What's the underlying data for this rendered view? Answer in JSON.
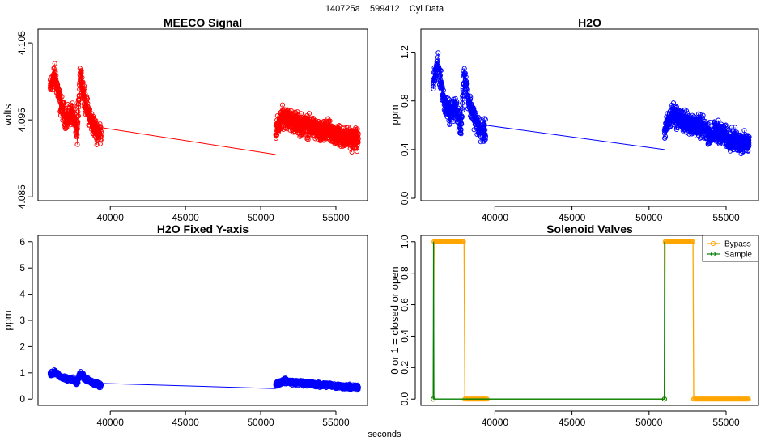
{
  "figure": {
    "suptitle": "140725a    599412    Cyl Data",
    "xlabel": "seconds"
  },
  "chart_data": [
    {
      "id": "meeco",
      "type": "line",
      "title": "MEECO Signal",
      "xlabel": "",
      "ylabel": "volts",
      "color": "#ff0000",
      "marker": "open-circle",
      "xlim": [
        35200,
        57100
      ],
      "ylim": [
        4.0845,
        4.1068
      ],
      "xticks": [
        40000,
        45000,
        50000,
        55000
      ],
      "xtick_labels": [
        "40000",
        "45000",
        "50000",
        "55000"
      ],
      "yticks": [
        4.085,
        4.095,
        4.105
      ],
      "ytick_labels": [
        "4.085",
        "4.095",
        "4.105"
      ],
      "ytick_rotated": true,
      "segments": [
        {
          "x": [
            36000,
            36300,
            36700,
            37100,
            37500,
            37800,
            38000,
            38300,
            38700,
            39100,
            39400
          ],
          "y": [
            4.099,
            4.101,
            4.097,
            4.095,
            4.096,
            4.093,
            4.1015,
            4.0975,
            4.095,
            4.0935,
            4.0935
          ]
        },
        {
          "x": [
            51000,
            51500,
            52000,
            52500,
            53000,
            53500,
            54000,
            54500,
            55000,
            55500,
            56000,
            56500
          ],
          "y": [
            4.0935,
            4.0955,
            4.095,
            4.0945,
            4.0942,
            4.094,
            4.0932,
            4.0935,
            4.093,
            4.0928,
            4.0925,
            4.0925
          ]
        }
      ],
      "connector": {
        "x": [
          39400,
          51000
        ],
        "y": [
          4.094,
          4.0905
        ]
      }
    },
    {
      "id": "h2o",
      "type": "line",
      "title": "H2O",
      "xlabel": "",
      "ylabel": "ppm",
      "color": "#0000ff",
      "marker": "open-circle",
      "xlim": [
        35200,
        57100
      ],
      "ylim": [
        -0.02,
        1.39
      ],
      "xticks": [
        40000,
        45000,
        50000,
        55000
      ],
      "xtick_labels": [
        "40000",
        "45000",
        "50000",
        "55000"
      ],
      "yticks": [
        0.0,
        0.4,
        0.8,
        1.2
      ],
      "ytick_labels": [
        "0.0",
        "0.4",
        "0.8",
        "1.2"
      ],
      "ytick_rotated": true,
      "segments": [
        {
          "x": [
            36000,
            36300,
            36700,
            37100,
            37500,
            37800,
            38000,
            38300,
            38700,
            39100,
            39400
          ],
          "y": [
            0.95,
            1.1,
            0.8,
            0.7,
            0.75,
            0.55,
            1.05,
            0.8,
            0.65,
            0.55,
            0.55
          ]
        },
        {
          "x": [
            51000,
            51500,
            52000,
            52500,
            53000,
            53500,
            54000,
            54500,
            55000,
            55500,
            56000,
            56500
          ],
          "y": [
            0.55,
            0.7,
            0.65,
            0.62,
            0.6,
            0.58,
            0.52,
            0.55,
            0.5,
            0.48,
            0.45,
            0.45
          ]
        }
      ],
      "connector": {
        "x": [
          39400,
          51000
        ],
        "y": [
          0.6,
          0.4
        ]
      }
    },
    {
      "id": "h2o_fixed",
      "type": "line",
      "title": "H2O Fixed Y-axis",
      "xlabel": "",
      "ylabel": "ppm",
      "color": "#0000ff",
      "marker": "open-circle",
      "xlim": [
        35200,
        57100
      ],
      "ylim": [
        -0.24,
        6.24
      ],
      "xticks": [
        40000,
        45000,
        50000,
        55000
      ],
      "xtick_labels": [
        "40000",
        "45000",
        "50000",
        "55000"
      ],
      "yticks": [
        0,
        1,
        2,
        3,
        4,
        5,
        6
      ],
      "ytick_labels": [
        "0",
        "1",
        "2",
        "3",
        "4",
        "5",
        "6"
      ],
      "ytick_rotated": false,
      "segments": [
        {
          "x": [
            36000,
            36300,
            36700,
            37100,
            37500,
            37800,
            38000,
            38300,
            38700,
            39100,
            39400
          ],
          "y": [
            0.95,
            1.05,
            0.85,
            0.75,
            0.75,
            0.6,
            1.0,
            0.8,
            0.65,
            0.55,
            0.55
          ]
        },
        {
          "x": [
            51000,
            51500,
            52000,
            52500,
            53000,
            53500,
            54000,
            54500,
            55000,
            55500,
            56000,
            56500
          ],
          "y": [
            0.55,
            0.7,
            0.65,
            0.62,
            0.6,
            0.58,
            0.52,
            0.55,
            0.5,
            0.48,
            0.45,
            0.45
          ]
        }
      ],
      "connector": {
        "x": [
          39400,
          51000
        ],
        "y": [
          0.6,
          0.4
        ]
      }
    },
    {
      "id": "valves",
      "type": "line",
      "title": "Solenoid Valves",
      "xlabel": "",
      "ylabel": "0 or 1 = closed or open",
      "xlim": [
        35200,
        57100
      ],
      "ylim": [
        -0.04,
        1.04
      ],
      "xticks": [
        40000,
        45000,
        50000,
        55000
      ],
      "xtick_labels": [
        "40000",
        "45000",
        "50000",
        "55000"
      ],
      "yticks": [
        0.0,
        0.2,
        0.4,
        0.6,
        0.8,
        1.0
      ],
      "ytick_labels": [
        "0.0",
        "0.2",
        "0.4",
        "0.6",
        "0.8",
        "1.0"
      ],
      "ytick_rotated": true,
      "legend": {
        "position": "top-right",
        "entries": [
          "Bypass",
          "Sample"
        ]
      },
      "series": [
        {
          "name": "Bypass",
          "color": "#ffa500",
          "steps": [
            [
              36000,
              0
            ],
            [
              36050,
              1
            ],
            [
              38000,
              1
            ],
            [
              38050,
              0
            ],
            [
              51000,
              0
            ],
            [
              51050,
              1
            ],
            [
              52850,
              1
            ],
            [
              52900,
              0
            ],
            [
              56500,
              0
            ]
          ],
          "marker_ranges": [
            [
              36050,
              38000,
              1
            ],
            [
              38050,
              39500,
              0
            ],
            [
              51050,
              52850,
              1
            ],
            [
              52900,
              56500,
              0
            ]
          ],
          "isolated_markers": [
            [
              36000,
              0
            ],
            [
              51000,
              0
            ]
          ]
        },
        {
          "name": "Sample",
          "color": "#008000",
          "steps": [
            [
              36000,
              0
            ],
            [
              36020,
              1
            ],
            [
              36040,
              0
            ],
            [
              50990,
              0
            ],
            [
              51010,
              1
            ],
            [
              51030,
              0
            ]
          ],
          "marker_ranges": [],
          "isolated_markers": [
            [
              36000,
              0
            ],
            [
              51000,
              0
            ]
          ]
        }
      ]
    }
  ]
}
